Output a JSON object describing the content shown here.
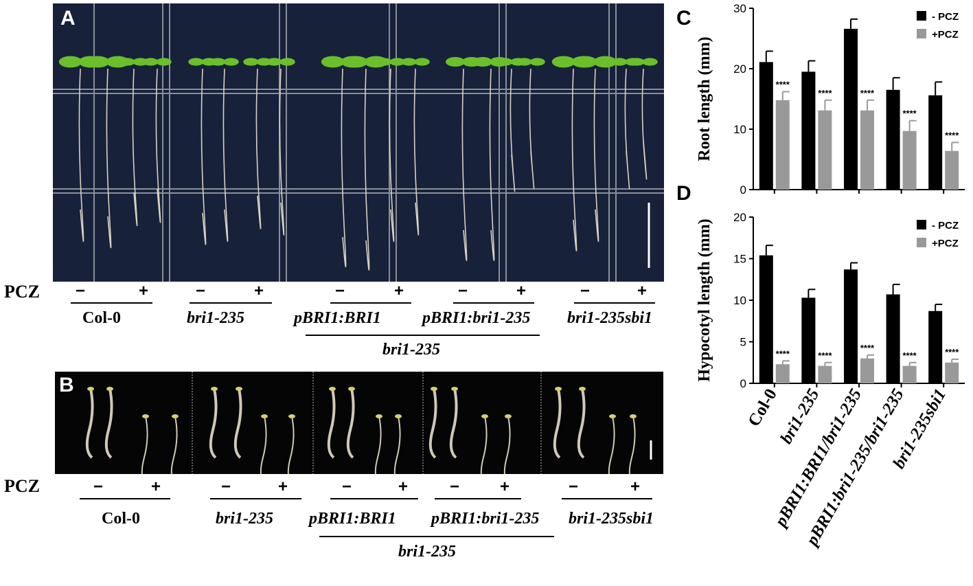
{
  "panels": {
    "a": {
      "letter": "A"
    },
    "b": {
      "letter": "B"
    },
    "c": {
      "letter": "C"
    },
    "d": {
      "letter": "D"
    }
  },
  "pcz_label": "PCZ",
  "minus_sign": "−",
  "plus_sign": "+",
  "genotypes": {
    "col0": "Col-0",
    "bri1": "bri1-235",
    "pbri1_bri1": "pBRI1:BRI1",
    "pbri1_bri1_235": "pBRI1:bri1-235",
    "sbi1": "bri1-235sbi1",
    "background": "bri1-235"
  },
  "significance_mark": "****",
  "colors": {
    "minus_pcz": "#000000",
    "plus_pcz": "#999999",
    "photo_a_bg": "#17213a",
    "photo_b_bg": "#050505",
    "cotyledon": "#6bbf2a",
    "root": "#d8d2c0"
  },
  "chart_data": [
    {
      "id": "C",
      "type": "bar",
      "ylabel": "Root length (mm)",
      "ylim": [
        0,
        30
      ],
      "yticks": [
        "0",
        "10",
        "20",
        "30"
      ],
      "categories": [
        "Col-0",
        "bri1-235",
        "pBRI1:BRI1/bri1-235",
        "pBRI1:bri1-235/bri1-235",
        "bri1-235sbi1"
      ],
      "legend_position": "top-right",
      "series": [
        {
          "name": "- PCZ",
          "values": [
            21.1,
            19.5,
            26.6,
            16.5,
            15.6
          ],
          "errors": [
            1.8,
            1.8,
            1.6,
            2.0,
            2.2
          ]
        },
        {
          "name": "+PCZ",
          "values": [
            14.8,
            13.1,
            13.1,
            9.7,
            6.4
          ],
          "errors": [
            1.4,
            1.7,
            1.7,
            1.7,
            1.4
          ]
        }
      ],
      "annotations": [
        "****",
        "****",
        "****",
        "****",
        "****"
      ]
    },
    {
      "id": "D",
      "type": "bar",
      "ylabel": "Hypocotyl length (mm)",
      "ylim": [
        0,
        20
      ],
      "yticks": [
        "0",
        "5",
        "10",
        "15",
        "20"
      ],
      "categories": [
        "Col-0",
        "bri1-235",
        "pBRI1:BRI1/bri1-235",
        "pBRI1:bri1-235/bri1-235",
        "bri1-235sbi1"
      ],
      "legend_position": "top-right",
      "series": [
        {
          "name": "- PCZ",
          "values": [
            15.4,
            10.3,
            13.7,
            10.7,
            8.7
          ],
          "errors": [
            1.2,
            1.0,
            0.8,
            1.2,
            0.8
          ]
        },
        {
          "name": "+PCZ",
          "values": [
            2.3,
            2.1,
            3.0,
            2.1,
            2.5
          ],
          "errors": [
            0.4,
            0.4,
            0.4,
            0.4,
            0.4
          ]
        }
      ],
      "annotations": [
        "****",
        "****",
        "****",
        "****",
        "****"
      ]
    }
  ]
}
